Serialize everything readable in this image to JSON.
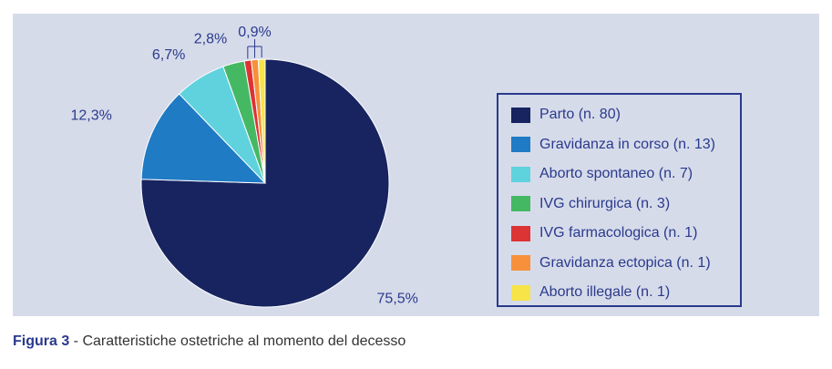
{
  "chart_data": {
    "type": "pie",
    "slices": [
      {
        "label": "Parto (n. 80)",
        "value": 75.5,
        "display": "75,5%",
        "color": "#172460"
      },
      {
        "label": "Gravidanza in corso (n. 13)",
        "value": 12.3,
        "display": "12,3%",
        "color": "#1f7bc4"
      },
      {
        "label": "Aborto spontaneo (n. 7)",
        "value": 6.7,
        "display": "6,7%",
        "color": "#5fd2de"
      },
      {
        "label": "IVG chirurgica (n. 3)",
        "value": 2.8,
        "display": "2,8%",
        "color": "#45b864"
      },
      {
        "label": "IVG farmacologica (n. 1)",
        "value": 0.9,
        "display": "",
        "color": "#dc3434"
      },
      {
        "label": "Gravidanza ectopica (n. 1)",
        "value": 0.9,
        "display": "",
        "color": "#f7903a"
      },
      {
        "label": "Aborto illegale (n. 1)",
        "value": 0.9,
        "display": "",
        "color": "#f6e448"
      }
    ],
    "shared_small_label": "0,9%",
    "legend_position": "right"
  },
  "caption": {
    "label": "Figura 3",
    "separator": " - ",
    "text": "Caratteristiche ostetriche al momento del decesso"
  },
  "colors": {
    "panel_background": "#d6dbea",
    "text_accent": "#2a3a8c"
  }
}
